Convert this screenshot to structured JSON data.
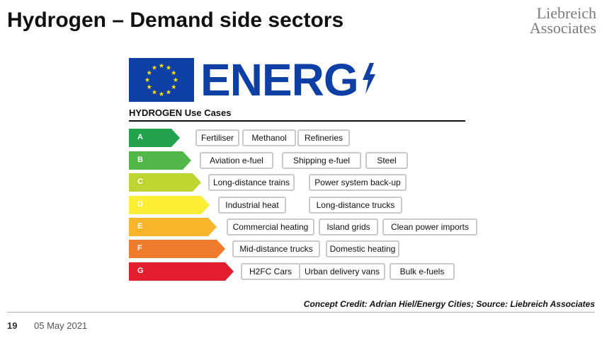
{
  "slide": {
    "title": "Hydrogen – Demand side sectors",
    "logo_line1": "Liebreich",
    "logo_line2": "Associates"
  },
  "label": {
    "brand_word": "ENERG",
    "brand_icon": "lightning-bolt-icon",
    "flag_icon": "eu-flag-icon",
    "title": "HYDROGEN Use Cases",
    "brand_color": "#0d3fa5",
    "rows": [
      {
        "grade": "A",
        "color": "#23a24d",
        "items": [
          "Fertiliser",
          "Methanol",
          "Refineries"
        ]
      },
      {
        "grade": "B",
        "color": "#50b748",
        "items": [
          "Aviation e-fuel",
          "Shipping e-fuel",
          "Steel"
        ]
      },
      {
        "grade": "C",
        "color": "#bed531",
        "items": [
          "Long-distance trains",
          "Power system back-up"
        ]
      },
      {
        "grade": "D",
        "color": "#fced35",
        "items": [
          "Industrial heat",
          "Long-distance trucks"
        ]
      },
      {
        "grade": "E",
        "color": "#f8b42b",
        "items": [
          "Commercial heating",
          "Island grids",
          "Clean power imports"
        ]
      },
      {
        "grade": "F",
        "color": "#ef7b2d",
        "items": [
          "Mid-distance trucks",
          "Domestic heating"
        ]
      },
      {
        "grade": "G",
        "color": "#e31e2f",
        "items": [
          "H2FC Cars",
          "Urban delivery vans",
          "Bulk e-fuels"
        ]
      }
    ]
  },
  "footer": {
    "source": "Concept Credit: Adrian Hiel/Energy Cities; Source: Liebreich Associates",
    "page_number": "19",
    "date": "05 May 2021"
  }
}
